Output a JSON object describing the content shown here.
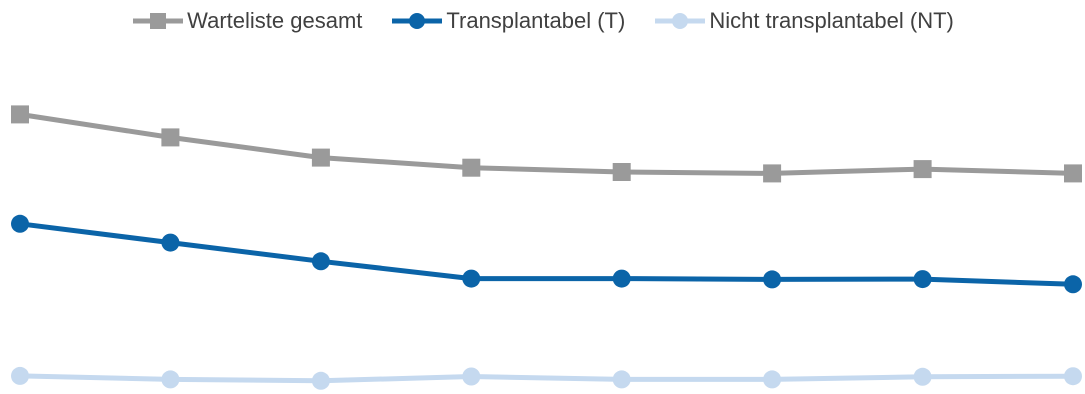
{
  "chart_data": {
    "type": "line",
    "title": "",
    "xlabel": "",
    "ylabel": "",
    "x": [
      1,
      2,
      3,
      4,
      5,
      6,
      7,
      8
    ],
    "ylim": [
      0,
      100
    ],
    "grid": false,
    "legend_position": "top",
    "series": [
      {
        "name": "Warteliste gesamt",
        "color": "#9a9a9a",
        "marker": "square",
        "values": [
          95,
          87,
          80,
          76.5,
          75,
          74.5,
          76,
          74.5
        ]
      },
      {
        "name": "Transplantabel (T)",
        "color": "#0b64a8",
        "marker": "circle",
        "values": [
          57,
          50.5,
          44,
          38,
          38,
          37.7,
          37.8,
          36
        ]
      },
      {
        "name": "Nicht transplantabel (NT)",
        "color": "#c5d9ef",
        "marker": "circle",
        "values": [
          4.2,
          3,
          2.5,
          4,
          3,
          3,
          3.9,
          4.1
        ]
      }
    ]
  }
}
